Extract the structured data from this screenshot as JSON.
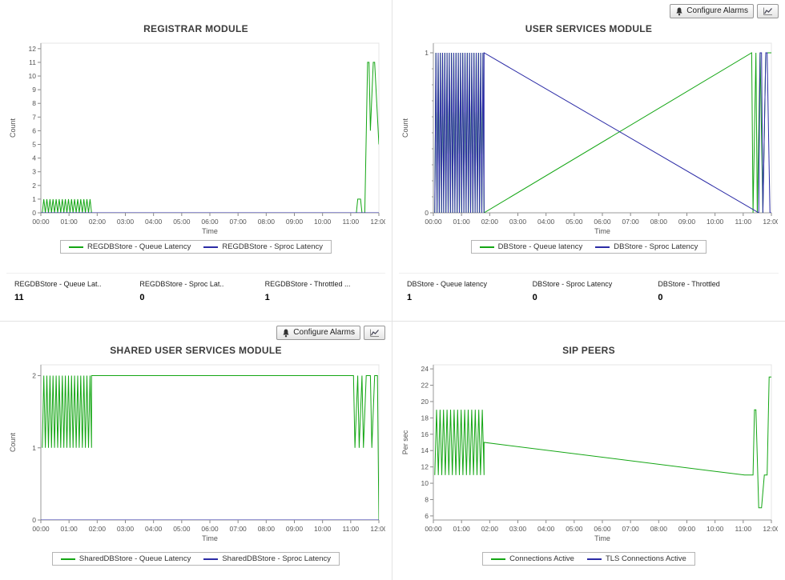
{
  "ui": {
    "configure_alarms_label": "Configure Alarms"
  },
  "panels": [
    {
      "stats": [
        {
          "label": "REGDBStore - Queue Lat..",
          "value": "11"
        },
        {
          "label": "REGDBStore - Sproc Lat..",
          "value": "0"
        },
        {
          "label": "REGDBStore - Throttled ...",
          "value": "1"
        }
      ]
    },
    {
      "stats": [
        {
          "label": "DBStore - Queue latency",
          "value": "1"
        },
        {
          "label": "DBStore - Sproc Latency",
          "value": "0"
        },
        {
          "label": "DBStore - Throttled",
          "value": "0"
        }
      ]
    },
    {},
    {}
  ],
  "chart_data": [
    {
      "type": "line",
      "title": "REGISTRAR MODULE",
      "xlabel": "Time",
      "ylabel": "Count",
      "xlim": [
        0,
        12
      ],
      "ylim": [
        0,
        12.4
      ],
      "yticks": [
        0,
        1,
        2,
        3,
        4,
        5,
        6,
        7,
        8,
        9,
        10,
        11,
        12
      ],
      "x_ticks": [
        "00:00",
        "01:00",
        "02:00",
        "03:00",
        "04:00",
        "05:00",
        "06:00",
        "07:00",
        "08:00",
        "09:00",
        "10:00",
        "11:00",
        "12:00"
      ],
      "grid": false,
      "legend_position": "bottom",
      "series": [
        {
          "name": "REGDBStore - Queue Latency",
          "color": "#14a614",
          "segments": [
            {
              "type": "oscillate",
              "x0": 0.05,
              "x1": 1.8,
              "y_low": 0,
              "y_high": 1,
              "cycles": 16
            },
            {
              "type": "points",
              "points": [
                [
                  1.8,
                  0
                ],
                [
                  11.2,
                  0
                ],
                [
                  11.25,
                  1
                ],
                [
                  11.35,
                  1
                ],
                [
                  11.4,
                  0
                ],
                [
                  11.5,
                  0
                ],
                [
                  11.6,
                  11
                ],
                [
                  11.65,
                  11
                ],
                [
                  11.7,
                  6
                ],
                [
                  11.8,
                  11
                ],
                [
                  11.85,
                  11
                ],
                [
                  12,
                  5
                ]
              ]
            }
          ]
        },
        {
          "name": "REGDBStore - Sproc Latency",
          "color": "#2b2ba6",
          "segments": [
            {
              "type": "points",
              "points": [
                [
                  0,
                  0
                ],
                [
                  12,
                  0
                ]
              ]
            }
          ]
        }
      ]
    },
    {
      "type": "line",
      "title": "USER SERVICES MODULE",
      "xlabel": "Time",
      "ylabel": "Count",
      "xlim": [
        0,
        12
      ],
      "ylim": [
        0,
        1.06
      ],
      "yticks": [
        0,
        1
      ],
      "y_minor_step": 0.1,
      "x_ticks": [
        "00:00",
        "01:00",
        "02:00",
        "03:00",
        "04:00",
        "05:00",
        "06:00",
        "07:00",
        "08:00",
        "09:00",
        "10:00",
        "11:00",
        "12:00"
      ],
      "grid": false,
      "legend_position": "bottom",
      "series": [
        {
          "name": "DBStore - Queue latency",
          "color": "#14a614",
          "segments": [
            {
              "type": "oscillate",
              "x0": 0.05,
              "x1": 1.8,
              "y_low": 0,
              "y_high": 1,
              "cycles": 22
            },
            {
              "type": "points",
              "points": [
                [
                  1.8,
                  0
                ],
                [
                  11.3,
                  1
                ],
                [
                  11.35,
                  0
                ],
                [
                  11.45,
                  1
                ],
                [
                  11.5,
                  0
                ],
                [
                  11.6,
                  1
                ],
                [
                  11.7,
                  0
                ],
                [
                  11.8,
                  1
                ],
                [
                  11.9,
                  1
                ],
                [
                  12,
                  1
                ]
              ]
            }
          ]
        },
        {
          "name": "DBStore - Sproc Latency",
          "color": "#2b2ba6",
          "segments": [
            {
              "type": "oscillate",
              "x0": 0.05,
              "x1": 1.8,
              "y_low": 0,
              "y_high": 1,
              "cycles": 22
            },
            {
              "type": "points",
              "points": [
                [
                  1.8,
                  1
                ],
                [
                  11.55,
                  0
                ],
                [
                  11.6,
                  1
                ],
                [
                  11.65,
                  1
                ],
                [
                  11.7,
                  0
                ],
                [
                  11.8,
                  1
                ],
                [
                  11.85,
                  1
                ],
                [
                  11.95,
                  0
                ],
                [
                  12,
                  0
                ]
              ]
            }
          ]
        }
      ]
    },
    {
      "type": "line",
      "title": "SHARED USER SERVICES MODULE",
      "xlabel": "Time",
      "ylabel": "Count",
      "xlim": [
        0,
        12
      ],
      "ylim": [
        0,
        2.15
      ],
      "yticks": [
        0,
        1,
        2
      ],
      "x_ticks": [
        "00:00",
        "01:00",
        "02:00",
        "03:00",
        "04:00",
        "05:00",
        "06:00",
        "07:00",
        "08:00",
        "09:00",
        "10:00",
        "11:00",
        "12:00"
      ],
      "grid": false,
      "legend_position": "bottom",
      "series": [
        {
          "name": "SharedDBStore - Queue Latency",
          "color": "#14a614",
          "segments": [
            {
              "type": "oscillate",
              "x0": 0.05,
              "x1": 1.8,
              "y_low": 1,
              "y_high": 2,
              "cycles": 16
            },
            {
              "type": "points",
              "points": [
                [
                  1.8,
                  2
                ],
                [
                  11.1,
                  2
                ],
                [
                  11.15,
                  1
                ],
                [
                  11.25,
                  2
                ],
                [
                  11.3,
                  1
                ],
                [
                  11.4,
                  2
                ],
                [
                  11.45,
                  1
                ],
                [
                  11.55,
                  2
                ],
                [
                  11.7,
                  2
                ],
                [
                  11.75,
                  1
                ],
                [
                  11.85,
                  2
                ],
                [
                  11.95,
                  2
                ],
                [
                  12,
                  0
                ]
              ]
            }
          ]
        },
        {
          "name": "SharedDBStore - Sproc Latency",
          "color": "#2b2ba6",
          "segments": [
            {
              "type": "points",
              "points": [
                [
                  0,
                  0
                ],
                [
                  12,
                  0
                ]
              ]
            }
          ]
        }
      ]
    },
    {
      "type": "line",
      "title": "SIP PEERS",
      "xlabel": "Time",
      "ylabel": "Per sec",
      "xlim": [
        0,
        12
      ],
      "ylim": [
        5.5,
        24.5
      ],
      "yticks": [
        6,
        8,
        10,
        12,
        14,
        16,
        18,
        20,
        22,
        24
      ],
      "x_ticks": [
        "00:00",
        "01:00",
        "02:00",
        "03:00",
        "04:00",
        "05:00",
        "06:00",
        "07:00",
        "08:00",
        "09:00",
        "10:00",
        "11:00",
        "12:00"
      ],
      "grid": false,
      "legend_position": "bottom",
      "series": [
        {
          "name": "Connections Active",
          "color": "#14a614",
          "segments": [
            {
              "type": "oscillate",
              "x0": 0.05,
              "x1": 1.8,
              "y_low": 11,
              "y_high": 19,
              "cycles": 14
            },
            {
              "type": "points",
              "points": [
                [
                  1.8,
                  15
                ],
                [
                  11.05,
                  11
                ],
                [
                  11.35,
                  11
                ],
                [
                  11.4,
                  19
                ],
                [
                  11.45,
                  19
                ],
                [
                  11.55,
                  7
                ],
                [
                  11.65,
                  7
                ],
                [
                  11.75,
                  11
                ],
                [
                  11.85,
                  11
                ],
                [
                  11.92,
                  23
                ],
                [
                  12,
                  23
                ]
              ]
            }
          ]
        },
        {
          "name": "TLS Connections Active",
          "color": "#2b2ba6",
          "segments": [
            {
              "type": "points",
              "points": [
                [
                  0,
                  0
                ],
                [
                  12,
                  0
                ]
              ]
            }
          ]
        }
      ]
    }
  ]
}
